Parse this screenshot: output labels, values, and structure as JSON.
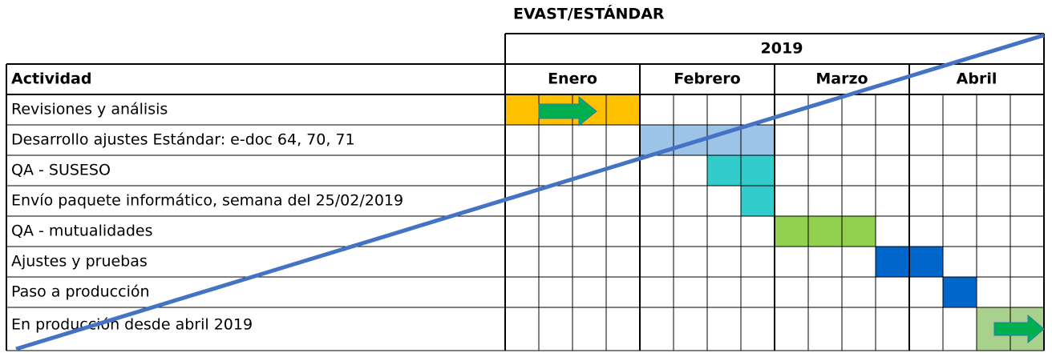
{
  "title": "EVAST/ESTÁNDAR",
  "year": "2019",
  "header": "Actividad",
  "months": [
    "Enero",
    "Febrero",
    "Marzo",
    "Abril"
  ],
  "rows": [
    "Revisiones y análisis",
    "Desarrollo ajustes Estándar: e-doc 64, 70, 71",
    "QA - SUSESO",
    "Envío paquete informático, semana del 25/02/2019",
    "QA - mutualidades",
    "Ajustes y pruebas",
    "Paso a producción",
    "En producción desde abril 2019"
  ]
}
